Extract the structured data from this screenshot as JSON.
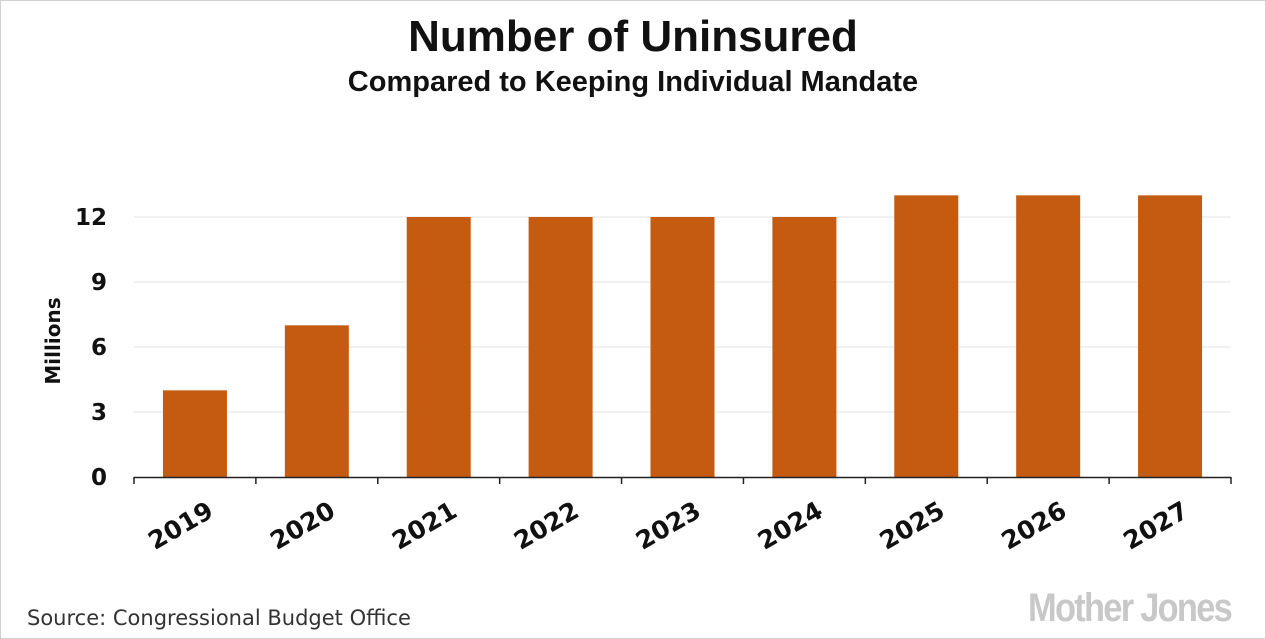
{
  "chart_data": {
    "type": "bar",
    "title": "Number of Uninsured",
    "subtitle": "Compared to Keeping Individual Mandate",
    "xlabel": "",
    "ylabel": "Millions",
    "categories": [
      "2019",
      "2020",
      "2021",
      "2022",
      "2023",
      "2024",
      "2025",
      "2026",
      "2027"
    ],
    "values": [
      4,
      7,
      12,
      12,
      12,
      12,
      13,
      13,
      13
    ],
    "ylim": [
      0,
      13
    ],
    "yticks": [
      "0",
      "3",
      "6",
      "9",
      "12"
    ],
    "grid": true,
    "bar_color": "#c55a11",
    "legend": "none"
  },
  "source": "Source: Congressional Budget Office",
  "brand": "Mother Jones"
}
